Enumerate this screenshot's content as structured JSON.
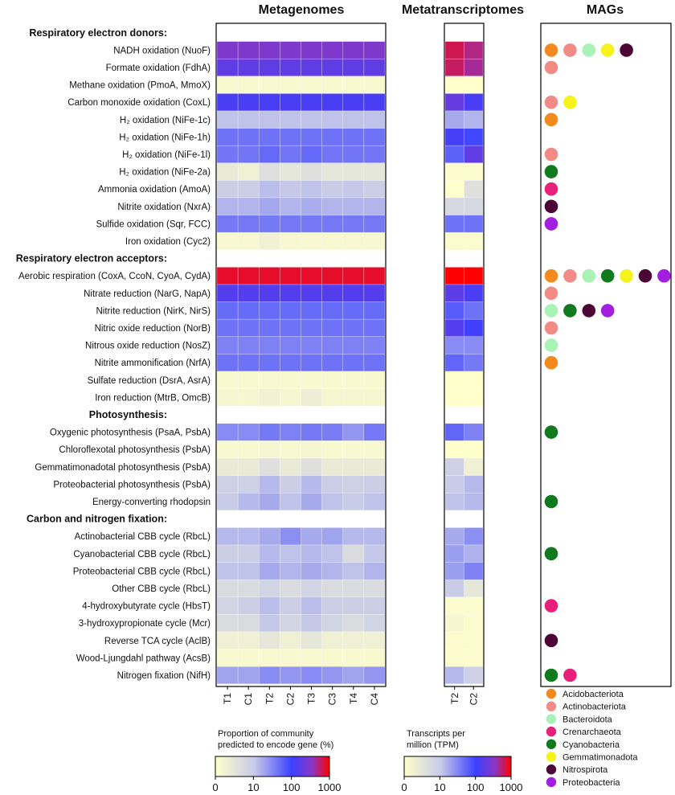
{
  "chart_data": {
    "type": "heatmap",
    "panels": {
      "metagenomes": {
        "title": "Metagenomes",
        "columns": [
          "T1",
          "C1",
          "T2",
          "C2",
          "T3",
          "C3",
          "T4",
          "C4"
        ]
      },
      "metatranscriptomes": {
        "title": "Metatranscriptomes",
        "columns": [
          "T2",
          "C2"
        ]
      },
      "mags": {
        "title": "MAGs"
      }
    },
    "scale": "log10",
    "metagenome_colorbar": {
      "title_line1": "Proportion of community",
      "title_line2": "predicted to encode gene (%)",
      "ticks": [
        "0",
        "10",
        "100",
        "1000"
      ]
    },
    "transcript_colorbar": {
      "title_line1": "Transcripts per",
      "title_line2": "million (TPM)",
      "ticks": [
        "0",
        "10",
        "100",
        "1000"
      ]
    },
    "taxa": [
      {
        "name": "Acidobacteriota",
        "color": "#f28a1e"
      },
      {
        "name": "Actinobacteriota",
        "color": "#f28b86"
      },
      {
        "name": "Bacteroidota",
        "color": "#a9f2b5"
      },
      {
        "name": "Crenarchaeota",
        "color": "#e8207a"
      },
      {
        "name": "Cyanobacteria",
        "color": "#127a1e"
      },
      {
        "name": "Gemmatimonadota",
        "color": "#f6f21c"
      },
      {
        "name": "Nitrospirota",
        "color": "#4b0636"
      },
      {
        "name": "Proteobacteria",
        "color": "#a21ee0"
      }
    ],
    "rows": [
      {
        "section": "Respiratory electron donors:"
      },
      {
        "label": "NADH oxidation (NuoF)",
        "mg": [
          300,
          300,
          300,
          300,
          300,
          300,
          300,
          300
        ],
        "mt": [
          650,
          500
        ],
        "mags": [
          0,
          1,
          2,
          5,
          6
        ]
      },
      {
        "label": "Formate oxidation (FdhA)",
        "mg": [
          180,
          180,
          180,
          180,
          180,
          180,
          180,
          180
        ],
        "mt": [
          600,
          450
        ],
        "mags": [
          1
        ]
      },
      {
        "label": "Methane oxidation (PmoA, MmoX)",
        "mg": [
          1.3,
          1.3,
          1.3,
          1.3,
          1.3,
          1.3,
          1.3,
          1.3
        ],
        "mt": [
          1,
          1
        ],
        "mags": []
      },
      {
        "label": "Carbon monoxide oxidation (CoxL)",
        "mg": [
          130,
          130,
          130,
          130,
          130,
          130,
          130,
          130
        ],
        "mt": [
          200,
          130
        ],
        "mags": [
          1,
          5
        ]
      },
      {
        "label": "H₂ oxidation (NiFe-1c)",
        "mg": [
          12,
          12,
          12,
          12,
          12,
          12,
          12,
          12
        ],
        "mt": [
          18,
          15
        ],
        "mags": [
          0
        ]
      },
      {
        "label": "H₂ oxidation (NiFe-1h)",
        "mg": [
          45,
          45,
          45,
          45,
          45,
          45,
          45,
          45
        ],
        "mt": [
          120,
          90
        ],
        "mags": []
      },
      {
        "label": "H₂ oxidation (NiFe-1l)",
        "mg": [
          42,
          42,
          52,
          42,
          52,
          42,
          42,
          42
        ],
        "mt": [
          60,
          180
        ],
        "mags": [
          1
        ]
      },
      {
        "label": "H₂ oxidation (NiFe-2a)",
        "mg": [
          2.5,
          2,
          4,
          3,
          4,
          3,
          3,
          3
        ],
        "mt": [
          1.2,
          1.2
        ],
        "mags": [
          4
        ]
      },
      {
        "label": "Ammonia oxidation (AmoA)",
        "mg": [
          9,
          9,
          13,
          11,
          12,
          10,
          11,
          9
        ],
        "mt": [
          1,
          4
        ],
        "mags": [
          3
        ]
      },
      {
        "label": "Nitrite oxidation (NxrA)",
        "mg": [
          15,
          15,
          19,
          15,
          17,
          15,
          15,
          15
        ],
        "mt": [
          6,
          6
        ],
        "mags": [
          6
        ]
      },
      {
        "label": "Sulfide oxidation (Sqr, FCC)",
        "mg": [
          40,
          40,
          40,
          40,
          40,
          40,
          40,
          40
        ],
        "mt": [
          45,
          45
        ],
        "mags": [
          7
        ]
      },
      {
        "label": "Iron oxidation (Cyc2)",
        "mg": [
          1.4,
          1.4,
          1.8,
          1.4,
          1.4,
          1.4,
          1.4,
          1.4
        ],
        "mt": [
          1.2,
          1.2
        ],
        "mags": []
      },
      {
        "section": "Respiratory electron acceptors:"
      },
      {
        "label": "Aerobic respiration (CoxA, CcoN, CyoA, CydA)",
        "mg": [
          800,
          800,
          800,
          800,
          800,
          800,
          800,
          800
        ],
        "mt": [
          1000,
          1000
        ],
        "mags": [
          0,
          1,
          2,
          4,
          5,
          6,
          7
        ]
      },
      {
        "label": "Nitrate reduction (NarG, NapA)",
        "mg": [
          150,
          150,
          150,
          150,
          150,
          150,
          150,
          150
        ],
        "mt": [
          170,
          130
        ],
        "mags": [
          1
        ]
      },
      {
        "label": "Nitrite reduction (NirK, NirS)",
        "mg": [
          50,
          50,
          50,
          50,
          50,
          50,
          50,
          50
        ],
        "mt": [
          65,
          45
        ],
        "mags": [
          2,
          4,
          6,
          7
        ]
      },
      {
        "label": "Nitric oxide reduction (NorB)",
        "mg": [
          45,
          45,
          45,
          45,
          45,
          45,
          45,
          45
        ],
        "mt": [
          150,
          110
        ],
        "mags": [
          1
        ]
      },
      {
        "label": "Nitrous oxide reduction (NosZ)",
        "mg": [
          35,
          35,
          35,
          35,
          35,
          35,
          35,
          35
        ],
        "mt": [
          30,
          30
        ],
        "mags": [
          2
        ]
      },
      {
        "label": "Nitrite ammonification (NrfA)",
        "mg": [
          45,
          45,
          45,
          45,
          45,
          45,
          45,
          45
        ],
        "mt": [
          55,
          40
        ],
        "mags": [
          0
        ]
      },
      {
        "label": "Sulfate reduction (DsrA, AsrA)",
        "mg": [
          1.3,
          1.3,
          1.3,
          1.3,
          1.3,
          1.3,
          1.3,
          1.3
        ],
        "mt": [
          1,
          1
        ],
        "mags": []
      },
      {
        "label": "Iron reduction (MtrB, OmcB)",
        "mg": [
          1.5,
          1.5,
          1.8,
          1.5,
          2.2,
          1.5,
          1.5,
          1.5
        ],
        "mt": [
          1,
          1
        ],
        "mags": []
      },
      {
        "section": "Photosynthesis:"
      },
      {
        "label": "Oxygenic photosynthesis (PsaA, PsbA)",
        "mg": [
          30,
          30,
          40,
          35,
          40,
          38,
          25,
          40
        ],
        "mt": [
          55,
          35
        ],
        "mags": [
          4
        ]
      },
      {
        "label": "Chloroflexotal photosynthesis (PsbA)",
        "mg": [
          1.3,
          1.3,
          1.5,
          1.3,
          1.5,
          1.3,
          1.3,
          1.3
        ],
        "mt": [
          1,
          1
        ],
        "mags": []
      },
      {
        "label": "Gemmatimonadotal photosynthesis (PsbA)",
        "mg": [
          2.5,
          2.5,
          4,
          2.5,
          4,
          2.5,
          2.5,
          2.5
        ],
        "mt": [
          8,
          2
        ],
        "mags": []
      },
      {
        "label": "Proteobacterial photosynthesis (PsbA)",
        "mg": [
          8,
          8,
          14,
          9,
          14,
          9,
          8,
          9
        ],
        "mt": [
          10,
          14
        ],
        "mags": []
      },
      {
        "label": "Energy-converting rhodopsin",
        "mg": [
          10,
          14,
          18,
          12,
          18,
          12,
          10,
          12
        ],
        "mt": [
          12,
          14
        ],
        "mags": [
          4
        ]
      },
      {
        "section": "Carbon and nitrogen fixation:"
      },
      {
        "label": "Actinobacterial CBB cycle (RbcL)",
        "mg": [
          14,
          14,
          18,
          28,
          18,
          20,
          14,
          14
        ],
        "mt": [
          18,
          28
        ],
        "mags": []
      },
      {
        "label": "Cyanobacterial CBB cycle (RbcL)",
        "mg": [
          9,
          9,
          14,
          12,
          14,
          12,
          5,
          11
        ],
        "mt": [
          22,
          16
        ],
        "mags": [
          4
        ]
      },
      {
        "label": "Proteobacterial CBB cycle (RbcL)",
        "mg": [
          12,
          12,
          18,
          15,
          18,
          15,
          12,
          15
        ],
        "mt": [
          22,
          35
        ],
        "mags": []
      },
      {
        "label": "Other CBB cycle (RbcL)",
        "mg": [
          5,
          5,
          7,
          5,
          7,
          5,
          5,
          5
        ],
        "mt": [
          10,
          3
        ],
        "mags": []
      },
      {
        "label": "4-hydroxybutyrate cycle (HbsT)",
        "mg": [
          7,
          9,
          13,
          9,
          13,
          9,
          9,
          9
        ],
        "mt": [
          1.2,
          1.2
        ],
        "mags": [
          3
        ]
      },
      {
        "label": "3-hydroxypropionate cycle (Mcr)",
        "mg": [
          5,
          5,
          11,
          7,
          11,
          7,
          5,
          7
        ],
        "mt": [
          1.5,
          1.2
        ],
        "mags": []
      },
      {
        "label": "Reverse TCA cycle (AclB)",
        "mg": [
          2,
          2,
          3,
          2,
          3,
          2,
          2,
          2
        ],
        "mt": [
          1.2,
          1.2
        ],
        "mags": [
          6
        ]
      },
      {
        "label": "Wood-Ljungdahl pathway (AcsB)",
        "mg": [
          1.3,
          1.3,
          1.3,
          1.3,
          1.3,
          1.3,
          1.3,
          1.3
        ],
        "mt": [
          1.2,
          1.2
        ],
        "mags": []
      },
      {
        "label": "Nitrogen fixation (NifH)",
        "mg": [
          20,
          20,
          30,
          25,
          30,
          25,
          20,
          25
        ],
        "mt": [
          14,
          8
        ],
        "mags": [
          4,
          3
        ]
      }
    ]
  }
}
